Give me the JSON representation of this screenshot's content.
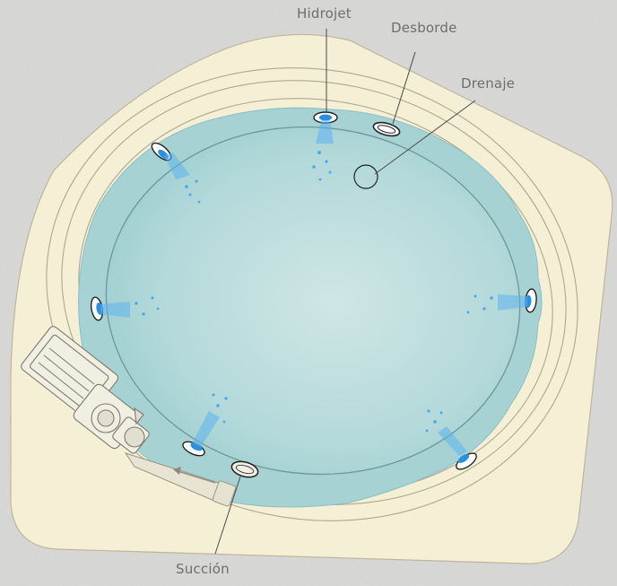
{
  "labels": {
    "hidrojet": "Hidrojet",
    "desborde": "Desborde",
    "drenaje": "Drenaje",
    "succion": "Succión"
  },
  "colors": {
    "background": "#d9d9d7",
    "deck": "#f4efd8",
    "water": "#a6d2d3",
    "jet": "#2f8fe0",
    "label": "#6e6e6e"
  },
  "icons": [
    "hidrojet-icon",
    "desborde-icon",
    "drenaje-icon",
    "succion-icon",
    "pump-icon"
  ]
}
